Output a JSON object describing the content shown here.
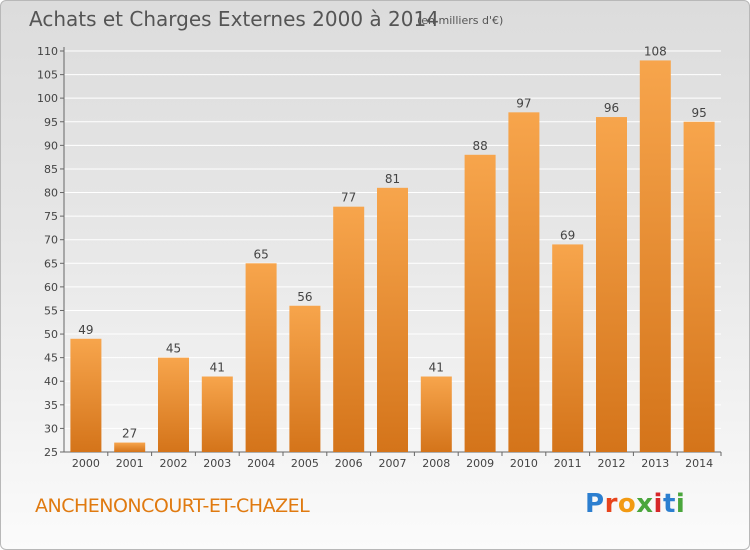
{
  "header": {
    "title": "Achats et Charges Externes 2000 à 2014",
    "subtitle": "(en milliers d'€)"
  },
  "footer": {
    "location": "ANCHENONCOURT-ET-CHAZEL",
    "logo_text": "Proxiti"
  },
  "colors": {
    "bar_light": "#f7a54c",
    "bar_dark": "#d4741a",
    "location_text": "#e07a10"
  },
  "chart_data": {
    "type": "bar",
    "title": "Achats et Charges Externes 2000 à 2014",
    "subtitle": "(en milliers d'€)",
    "categories": [
      "2000",
      "2001",
      "2002",
      "2003",
      "2004",
      "2005",
      "2006",
      "2007",
      "2008",
      "2009",
      "2010",
      "2011",
      "2012",
      "2013",
      "2014"
    ],
    "values": [
      49,
      27,
      45,
      41,
      65,
      56,
      77,
      81,
      41,
      88,
      97,
      69,
      96,
      108,
      95
    ],
    "ylim": [
      25,
      110
    ],
    "yticks": [
      25,
      30,
      35,
      40,
      45,
      50,
      55,
      60,
      65,
      70,
      75,
      80,
      85,
      90,
      95,
      100,
      105,
      110
    ],
    "grid": true,
    "data_labels": true
  }
}
